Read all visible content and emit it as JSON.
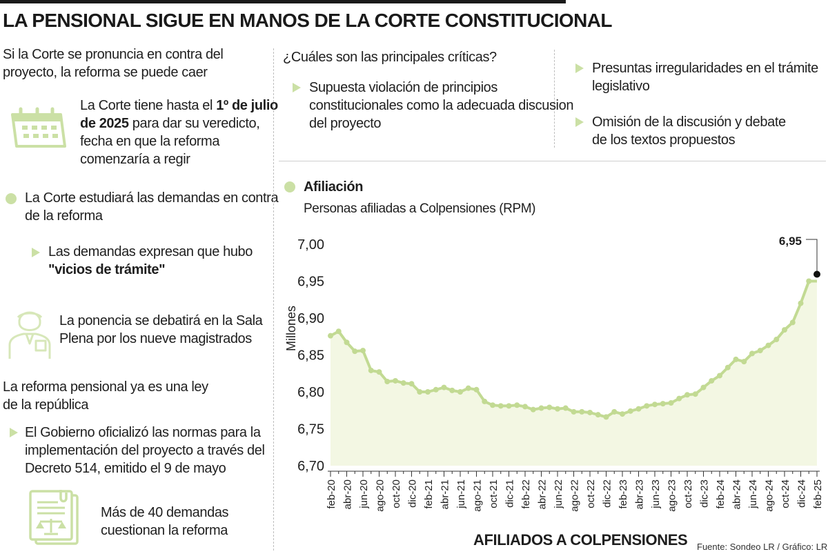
{
  "title": "LA PENSIONAL SIGUE EN MANOS DE LA CORTE CONSTITUCIONAL",
  "left": {
    "heading1_line1": "Si la Corte se pronuncia en contra del",
    "heading1_line2": "proyecto, la reforma se puede caer",
    "deadline_l1": "La Corte tiene hasta el ",
    "deadline_b1": "1º de julio",
    "deadline_b2": "de 2025",
    "deadline_l2": " para dar su veredicto,",
    "deadline_l3": "fecha en que la reforma",
    "deadline_l4": "comenzaría a regir",
    "study_l1": "La Corte estudiará las demandas en contra",
    "study_l2": "de la reforma",
    "demand_l1": "Las demandas expresan que hubo",
    "demand_l2": "\"vicios de trámite\"",
    "ponencia_l1": "La ponencia se debatirá en la Sala",
    "ponencia_l2": "Plena por los nueve magistrados",
    "heading2_line1": "La reforma pensional ya es una ley",
    "heading2_line2": "de la república",
    "gov_l1": "El Gobierno oficializó las normas para la",
    "gov_l2": "implementación del proyecto a través del",
    "gov_l3": "Decreto 514, emitido el 9 de mayo",
    "count_l1": "Más de 40 demandas",
    "count_l2": "cuestionan la reforma"
  },
  "criticas": {
    "heading": "¿Cuáles son las principales críticas?",
    "item1_l1": "Supuesta violación de principios",
    "item1_l2": "constitucionales como la adecuada discusion",
    "item1_l3": "del proyecto",
    "item2_l1": "Presuntas irregularidades en el trámite",
    "item2_l2": "legislativo",
    "item3_l1": "Omisión de la discusión y debate",
    "item3_l2": "de los textos propuestos"
  },
  "colors": {
    "accent": "#cbe0a5",
    "line": "#c2da93",
    "fill": "#f3f7e3",
    "text": "#1f1f1f"
  },
  "chart_data": {
    "type": "area",
    "title": "Afiliación",
    "subtitle": "Personas afiliadas a Colpensiones (RPM)",
    "ylabel": "Millones",
    "xlabel": "AFILIADOS A COLPENSIONES",
    "ylim": [
      6.7,
      7.0
    ],
    "yticks": [
      "7,00",
      "6,95",
      "6,90",
      "6,85",
      "6,80",
      "6,75",
      "6,70"
    ],
    "ytick_values": [
      7.0,
      6.95,
      6.9,
      6.85,
      6.8,
      6.75,
      6.7
    ],
    "x": [
      "feb-20",
      "mar-20",
      "abr-20",
      "may-20",
      "jun-20",
      "jul-20",
      "ago-20",
      "sep-20",
      "oct-20",
      "nov-20",
      "dic-20",
      "ene-21",
      "feb-21",
      "mar-21",
      "abr-21",
      "may-21",
      "jun-21",
      "jul-21",
      "ago-21",
      "sep-21",
      "oct-21",
      "nov-21",
      "dic-21",
      "ene-22",
      "feb-22",
      "mar-22",
      "abr-22",
      "may-22",
      "jun-22",
      "jul-22",
      "ago-22",
      "sep-22",
      "oct-22",
      "nov-22",
      "dic-22",
      "ene-23",
      "feb-23",
      "mar-23",
      "abr-23",
      "may-23",
      "jun-23",
      "jul-23",
      "ago-23",
      "sep-23",
      "oct-23",
      "nov-23",
      "dic-23",
      "ene-24",
      "feb-24",
      "mar-24",
      "abr-24",
      "may-24",
      "jun-24",
      "jul-24",
      "ago-24",
      "sep-24",
      "oct-24",
      "nov-24",
      "dic-24",
      "ene-25",
      "feb-25"
    ],
    "xticks": [
      "feb-20",
      "abr-20",
      "jun-20",
      "ago-20",
      "oct-20",
      "dic-20",
      "feb-21",
      "abr-21",
      "jun-21",
      "ago-21",
      "oct-21",
      "dic-21",
      "feb-22",
      "abr-22",
      "jun-22",
      "ago-22",
      "oct-22",
      "dic-22",
      "feb-23",
      "abr-23",
      "jun-23",
      "ago-23",
      "oct-23",
      "dic-23",
      "feb-24",
      "abr-24",
      "jun-24",
      "ago-24",
      "oct-24",
      "dic-24",
      "feb-25"
    ],
    "values": [
      6.876,
      6.882,
      6.867,
      6.855,
      6.856,
      6.829,
      6.827,
      6.814,
      6.815,
      6.812,
      6.811,
      6.8,
      6.8,
      6.803,
      6.806,
      6.802,
      6.8,
      6.805,
      6.803,
      6.787,
      6.782,
      6.781,
      6.781,
      6.782,
      6.78,
      6.776,
      6.778,
      6.779,
      6.777,
      6.778,
      6.773,
      6.773,
      6.772,
      6.769,
      6.766,
      6.773,
      6.77,
      6.774,
      6.777,
      6.781,
      6.783,
      6.784,
      6.785,
      6.791,
      6.796,
      6.797,
      6.806,
      6.815,
      6.822,
      6.833,
      6.844,
      6.841,
      6.852,
      6.856,
      6.863,
      6.871,
      6.884,
      6.894,
      6.92,
      6.95,
      6.95
    ],
    "annotation": "6,95",
    "source": "Fuente:  Sondeo LR / Gráfico: LR-AA"
  }
}
